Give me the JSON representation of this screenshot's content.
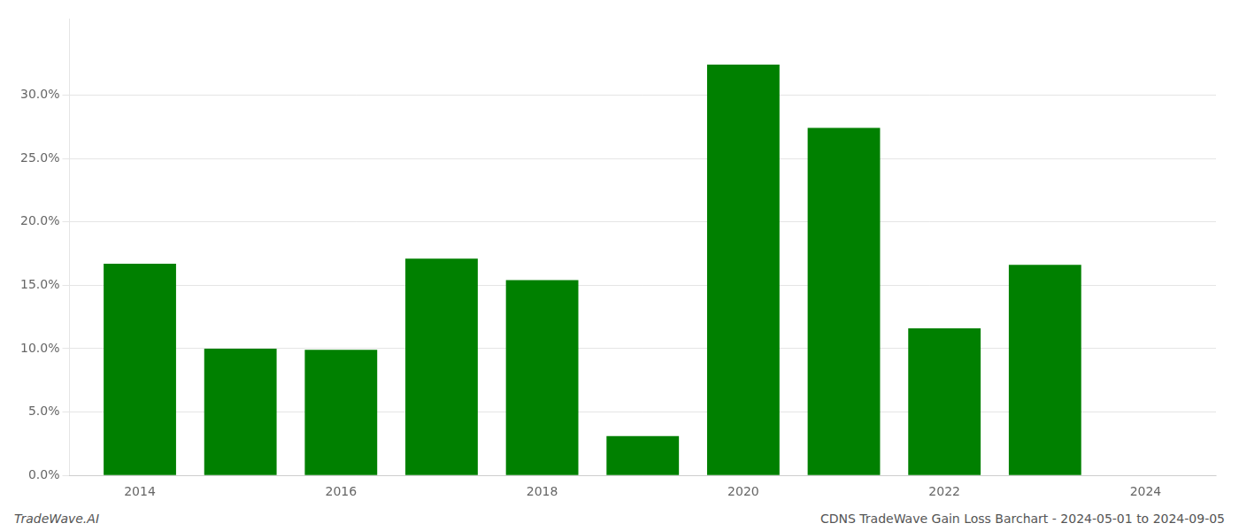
{
  "chart_data": {
    "type": "bar",
    "title": "CDNS TradeWave Gain Loss Barchart - 2024-05-01 to 2024-09-05",
    "annotations": [
      "TradeWave.AI"
    ],
    "x": [
      2014,
      2015,
      2016,
      2017,
      2018,
      2019,
      2020,
      2021,
      2022,
      2023,
      2024
    ],
    "values": [
      0.167,
      0.1,
      0.099,
      0.171,
      0.154,
      0.031,
      0.324,
      0.274,
      0.116,
      0.166,
      0.0
    ],
    "color": "#008000",
    "xlim": [
      2013.3,
      2024.7
    ],
    "xticks": [
      2014,
      2016,
      2018,
      2020,
      2022,
      2024
    ],
    "ylim": [
      0,
      0.36
    ],
    "yticks": [
      {
        "value": 0.0,
        "label": "0.0%"
      },
      {
        "value": 0.05,
        "label": "5.0%"
      },
      {
        "value": 0.1,
        "label": "10.0%"
      },
      {
        "value": 0.15,
        "label": "15.0%"
      },
      {
        "value": 0.2,
        "label": "20.0%"
      },
      {
        "value": 0.25,
        "label": "25.0%"
      },
      {
        "value": 0.3,
        "label": "30.0%"
      }
    ],
    "grid": true
  }
}
